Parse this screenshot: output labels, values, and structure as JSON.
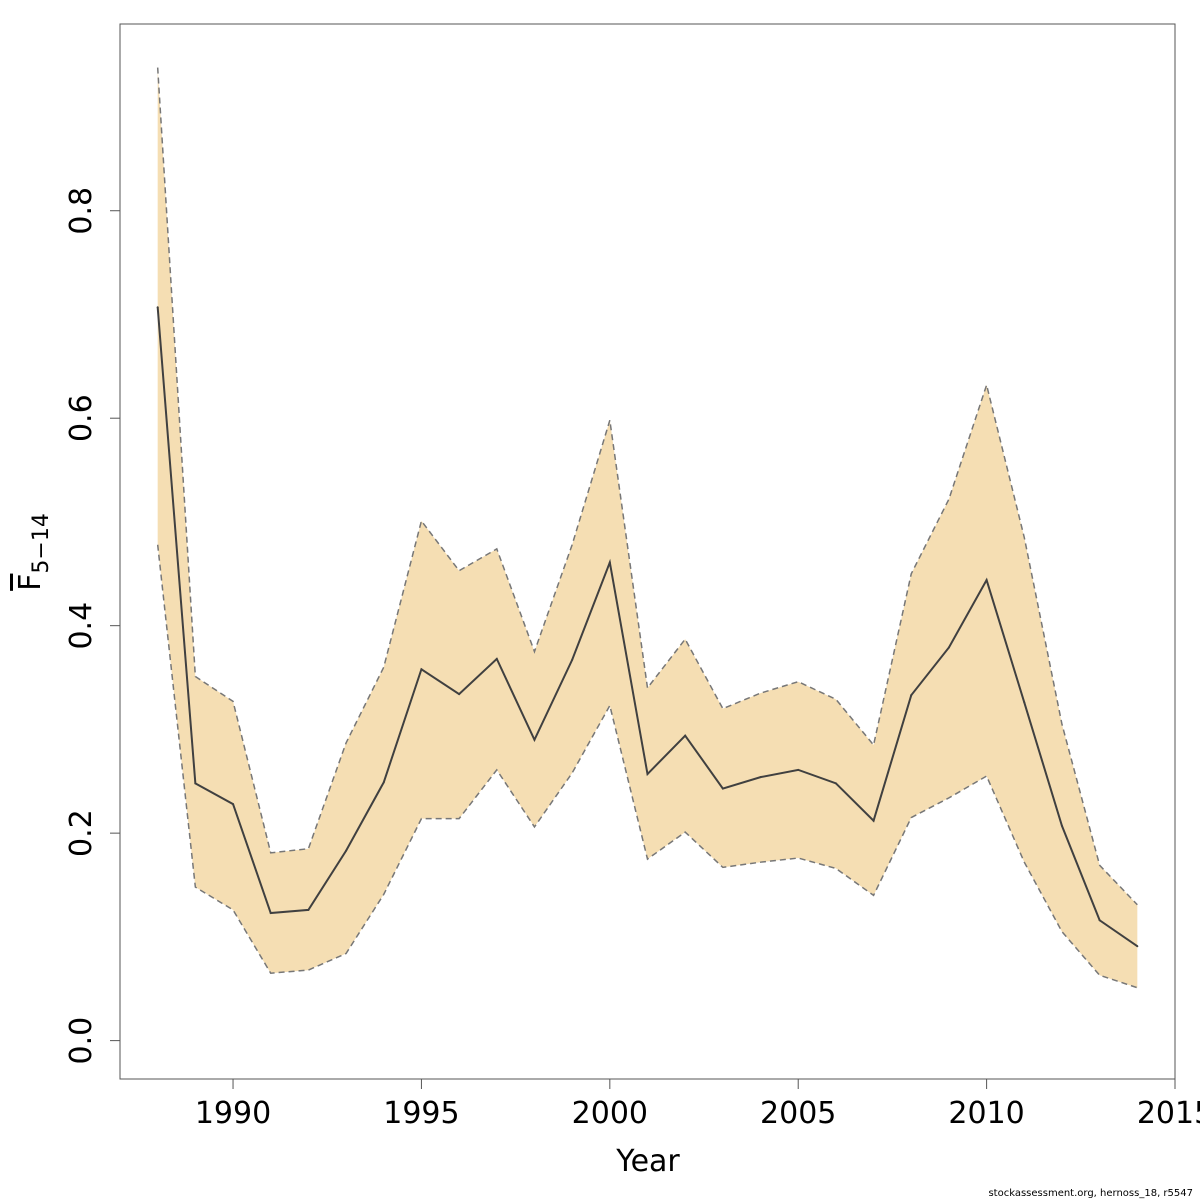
{
  "chart_data": {
    "type": "line",
    "xlabel": "Year",
    "ylabel": {
      "main": "F",
      "subscript": "5−14"
    },
    "xlim": [
      1987,
      2015
    ],
    "ylim": [
      -0.037,
      0.98
    ],
    "x_ticks": [
      1990,
      1995,
      2000,
      2005,
      2010,
      2015
    ],
    "y_ticks": [
      0.0,
      0.2,
      0.4,
      0.6,
      0.8
    ],
    "x_tick_labels": [
      "1990",
      "1995",
      "2000",
      "2005",
      "2010",
      "2015"
    ],
    "y_tick_labels": [
      "0.0",
      "0.2",
      "0.4",
      "0.6",
      "0.8"
    ],
    "grid": false,
    "legend": "none",
    "band_color": "#f5deb3",
    "band_edge_color": "#777777",
    "line_color": "#404040",
    "x": [
      1988,
      1989,
      1990,
      1991,
      1992,
      1993,
      1994,
      1995,
      1996,
      1997,
      1998,
      1999,
      2000,
      2001,
      2002,
      2003,
      2004,
      2005,
      2006,
      2007,
      2008,
      2009,
      2010,
      2011,
      2012,
      2013,
      2014
    ],
    "series": [
      {
        "values": [
          0.707,
          0.248,
          0.228,
          0.123,
          0.126,
          0.183,
          0.249,
          0.358,
          0.334,
          0.368,
          0.29,
          0.367,
          0.461,
          0.257,
          0.294,
          0.243,
          0.254,
          0.261,
          0.248,
          0.212,
          0.333,
          0.379,
          0.444,
          0.326,
          0.207,
          0.116,
          0.091
        ]
      }
    ],
    "band": {
      "lower": [
        0.478,
        0.148,
        0.126,
        0.065,
        0.068,
        0.084,
        0.141,
        0.214,
        0.214,
        0.261,
        0.206,
        0.258,
        0.323,
        0.175,
        0.201,
        0.167,
        0.172,
        0.176,
        0.166,
        0.14,
        0.215,
        0.234,
        0.255,
        0.172,
        0.105,
        0.063,
        0.051
      ],
      "upper": [
        0.938,
        0.351,
        0.327,
        0.181,
        0.185,
        0.287,
        0.36,
        0.501,
        0.453,
        0.474,
        0.375,
        0.478,
        0.598,
        0.34,
        0.387,
        0.32,
        0.335,
        0.346,
        0.329,
        0.285,
        0.45,
        0.522,
        0.632,
        0.485,
        0.305,
        0.169,
        0.131
      ]
    }
  },
  "footer": {
    "credit": "stockassessment.org, hernoss_18, r5547"
  }
}
